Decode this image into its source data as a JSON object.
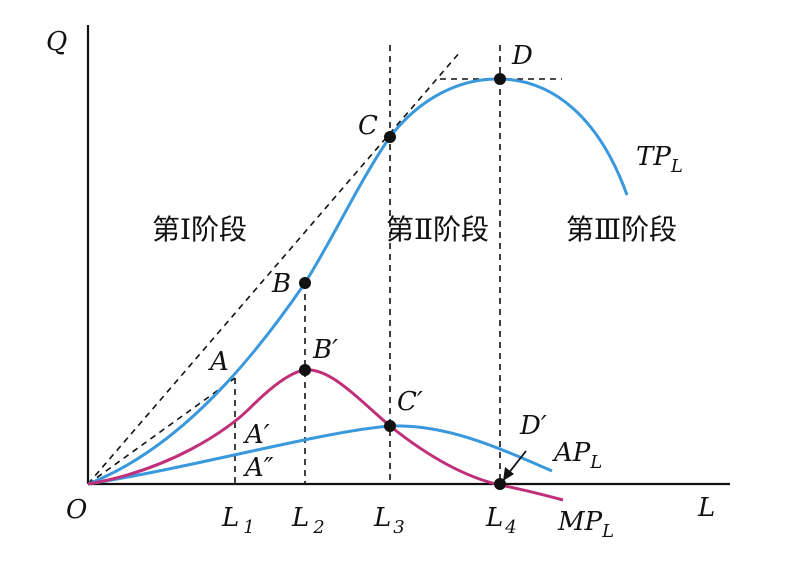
{
  "axes": {
    "y_label": "Q",
    "x_label": "L",
    "origin_label": "O"
  },
  "curves": {
    "tp": {
      "label": "TP",
      "sub": "L",
      "color": "#3a98dc"
    },
    "ap": {
      "label": "AP",
      "sub": "L",
      "color": "#3a98dc"
    },
    "mp": {
      "label": "MP",
      "sub": "L",
      "color": "#c0307a"
    }
  },
  "points": {
    "A": "A",
    "B": "B",
    "C": "C",
    "D": "D",
    "A1": "A′",
    "A2": "A″",
    "B1": "B′",
    "C1": "C′",
    "D1": "D′"
  },
  "ticks": [
    {
      "base": "L",
      "sub": "1"
    },
    {
      "base": "L",
      "sub": "2"
    },
    {
      "base": "L",
      "sub": "3"
    },
    {
      "base": "L",
      "sub": "4"
    }
  ],
  "stages": [
    "第Ⅰ阶段",
    "第Ⅱ阶段",
    "第Ⅲ阶段"
  ]
}
